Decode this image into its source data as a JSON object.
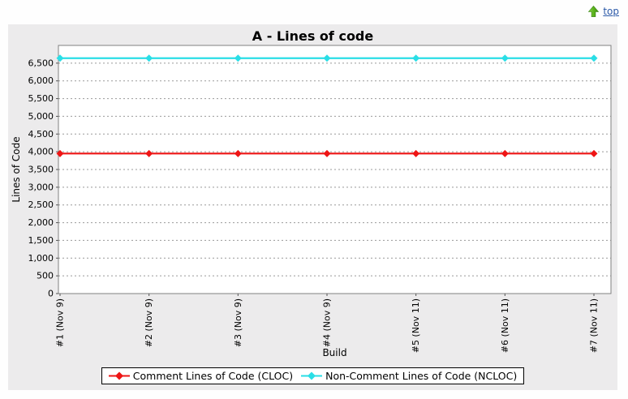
{
  "top_link": {
    "label": "top",
    "icon": "up-arrow-icon"
  },
  "chart_data": {
    "type": "line",
    "title": "A - Lines of code",
    "xlabel": "Build",
    "ylabel": "Lines of Code",
    "categories": [
      "#1 (Nov 9)",
      "#2 (Nov 9)",
      "#3 (Nov 9)",
      "#4 (Nov 9)",
      "#5 (Nov 11)",
      "#6 (Nov 11)",
      "#7 (Nov 11)"
    ],
    "series": [
      {
        "name": "Comment Lines of Code (CLOC)",
        "color": "#ee1515",
        "values": [
          3950,
          3950,
          3950,
          3950,
          3950,
          3950,
          3950
        ]
      },
      {
        "name": "Non-Comment Lines of Code (NCLOC)",
        "color": "#2adee6",
        "values": [
          6640,
          6640,
          6640,
          6640,
          6640,
          6640,
          6640
        ]
      }
    ],
    "ylim": [
      0,
      7000
    ],
    "yticks": [
      0,
      500,
      1000,
      1500,
      2000,
      2500,
      3000,
      3500,
      4000,
      4500,
      5000,
      5500,
      6000,
      6500
    ],
    "grid": "horizontal-dashed",
    "legend_position": "bottom",
    "marker": "diamond"
  },
  "colors": {
    "panel_background": "#ecebec",
    "plot_background": "#ffffff",
    "plot_border": "#808080",
    "gridline": "#999999",
    "tick": "#555555",
    "text": "#000000",
    "link": "#2b59a8",
    "arrow_green_light": "#8fd24f",
    "arrow_green_mid": "#5cb41c",
    "arrow_green_dark": "#3f9110"
  }
}
